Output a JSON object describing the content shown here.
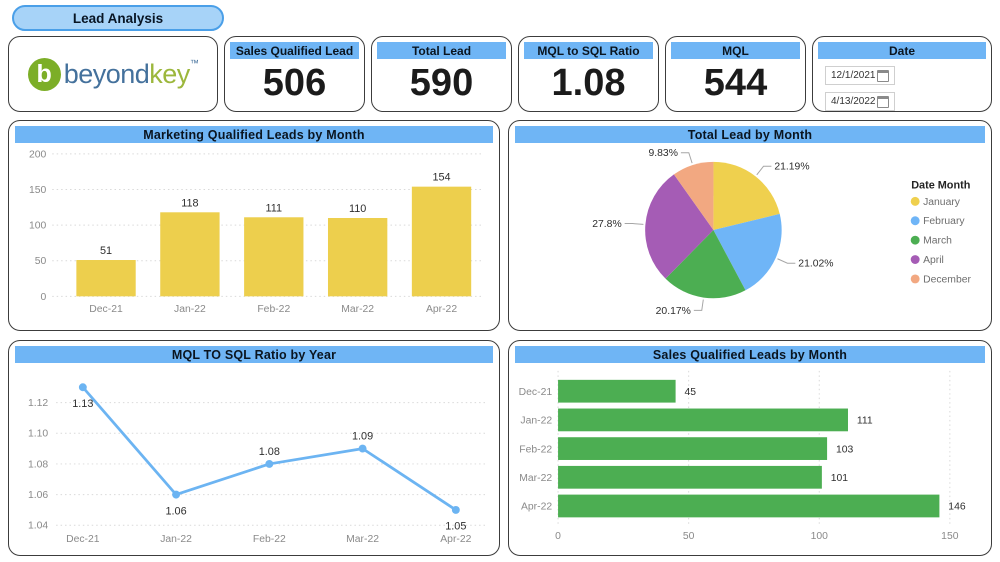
{
  "page": {
    "title": "Lead Analysis"
  },
  "logo": {
    "beyond": "beyond",
    "key": "key",
    "tm": "™",
    "icon_letter": "b"
  },
  "kpis": [
    {
      "label": "Sales Qualified Lead",
      "value": "506"
    },
    {
      "label": "Total Lead",
      "value": "590"
    },
    {
      "label": "MQL to SQL Ratio",
      "value": "1.08"
    },
    {
      "label": "MQL",
      "value": "544"
    }
  ],
  "date_slicer": {
    "label": "Date",
    "start": "12/1/2021",
    "end": "4/13/2022"
  },
  "colors": {
    "accent_header": "#6fb5f5",
    "title_pill_fill": "#a7d3f8",
    "title_pill_border": "#4a9fe8"
  },
  "chart_data": [
    {
      "type": "bar",
      "title": "Marketing Qualified Leads by Month",
      "categories": [
        "Dec-21",
        "Jan-22",
        "Feb-22",
        "Mar-22",
        "Apr-22"
      ],
      "values": [
        51,
        118,
        111,
        110,
        154
      ],
      "ylim": [
        0,
        200
      ],
      "yticks": [
        0,
        50,
        100,
        150,
        200
      ],
      "bar_color": "#edcf4d",
      "grid": "dotted horizontal",
      "xlabel": "",
      "ylabel": ""
    },
    {
      "type": "pie",
      "title": "Total Lead by Month",
      "legend_title": "Date Month",
      "legend_position": "right",
      "slices": [
        {
          "label": "January",
          "pct": 21.19,
          "display": "21.19%",
          "color": "#efd04e"
        },
        {
          "label": "February",
          "pct": 21.02,
          "display": "21.02%",
          "color": "#6fb5f7"
        },
        {
          "label": "March",
          "pct": 20.17,
          "display": "20.17%",
          "color": "#4cae52"
        },
        {
          "label": "April",
          "pct": 27.8,
          "display": "27.8%",
          "color": "#a55cb5"
        },
        {
          "label": "December",
          "pct": 9.83,
          "display": "9.83%",
          "color": "#f2a881"
        }
      ]
    },
    {
      "type": "line",
      "title": "MQL TO SQL Ratio by Year",
      "categories": [
        "Dec-21",
        "Jan-22",
        "Feb-22",
        "Mar-22",
        "Apr-22"
      ],
      "values": [
        1.13,
        1.06,
        1.08,
        1.09,
        1.05
      ],
      "labels": [
        "1.13",
        "1.06",
        "1.08",
        "1.09",
        "1.05"
      ],
      "yticks": [
        "1.04",
        "1.06",
        "1.08",
        "1.10",
        "1.12"
      ],
      "line_color": "#6cb4f2",
      "grid": "dotted horizontal",
      "xlabel": "",
      "ylabel": ""
    },
    {
      "type": "horizontal_bar",
      "title": "Sales Qualified Leads by Month",
      "categories": [
        "Dec-21",
        "Jan-22",
        "Feb-22",
        "Mar-22",
        "Apr-22"
      ],
      "values": [
        45,
        111,
        103,
        101,
        146
      ],
      "xlim": [
        0,
        160
      ],
      "xticks": [
        0,
        50,
        100,
        150
      ],
      "bar_color": "#4cae52",
      "grid": "dotted vertical",
      "xlabel": "",
      "ylabel": ""
    }
  ]
}
